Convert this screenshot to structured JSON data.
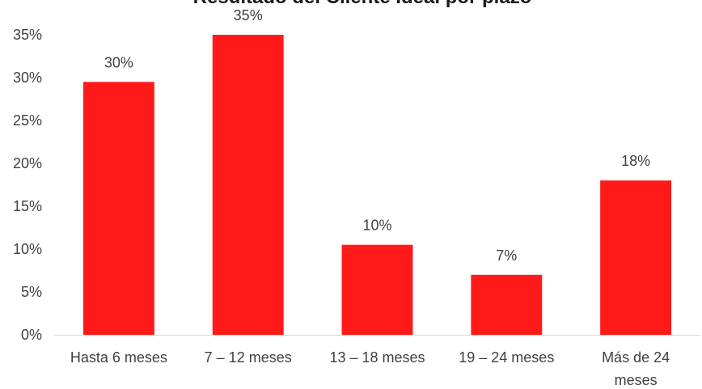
{
  "colors": {
    "bar": "#ff1a1a",
    "axis": "#d9d9d9",
    "text": "#404040"
  },
  "chart_data": {
    "type": "bar",
    "title": "Resultado del Cliente Ideal por plazo",
    "categories": [
      "Hasta 6 meses",
      "7 – 12 meses",
      "13 – 18 meses",
      "19 – 24 meses",
      "Más de 24 meses"
    ],
    "category_lines": [
      [
        "Hasta 6 meses"
      ],
      [
        "7 – 12 meses"
      ],
      [
        "13 – 18 meses"
      ],
      [
        "19 – 24 meses"
      ],
      [
        "Más de 24",
        "meses"
      ]
    ],
    "values": [
      29.5,
      35,
      10.5,
      7,
      18
    ],
    "data_labels": [
      "30%",
      "35%",
      "10%",
      "7%",
      "18%"
    ],
    "yticks": [
      "0%",
      "5%",
      "10%",
      "15%",
      "20%",
      "25%",
      "30%",
      "35%"
    ],
    "ylim": [
      0,
      35
    ],
    "grid": false
  }
}
